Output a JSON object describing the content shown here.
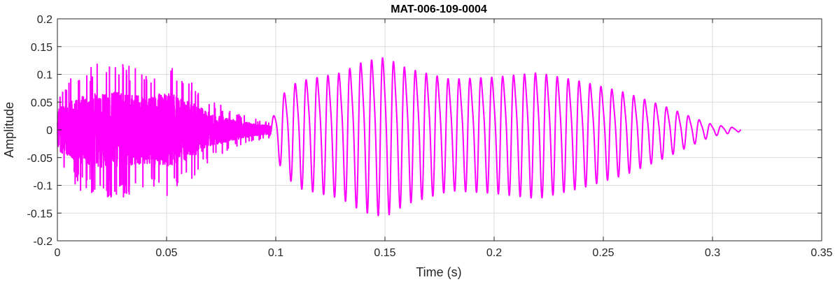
{
  "chart_data": {
    "type": "line",
    "title": "MAT-006-109-0004",
    "xlabel": "Time (s)",
    "ylabel": "Amplitude",
    "xlim": [
      0,
      0.35
    ],
    "ylim": [
      -0.2,
      0.2
    ],
    "xticks": [
      0,
      0.05,
      0.1,
      0.15,
      0.2,
      0.25,
      0.3,
      0.35
    ],
    "yticks": [
      -0.2,
      -0.15,
      -0.1,
      -0.05,
      0,
      0.05,
      0.1,
      0.15,
      0.2
    ],
    "xtick_labels": [
      "0",
      "0.05",
      "0.1",
      "0.15",
      "0.2",
      "0.25",
      "0.3",
      "0.35"
    ],
    "ytick_labels": [
      "-0.2",
      "-0.15",
      "-0.1",
      "-0.05",
      "0",
      "0.05",
      "0.1",
      "0.15",
      "0.2"
    ],
    "grid": true,
    "series": [
      {
        "color": "#ff00ff",
        "x_range": [
          0,
          0.313
        ],
        "segments": [
          {
            "kind": "noise",
            "t_start": 0.0,
            "t_end": 0.098,
            "envelope_t": [
              0.0,
              0.01,
              0.02,
              0.03,
              0.04,
              0.05,
              0.06,
              0.07,
              0.08,
              0.09,
              0.098
            ],
            "envelope_a": [
              0.05,
              0.08,
              0.09,
              0.09,
              0.08,
              0.09,
              0.07,
              0.04,
              0.025,
              0.015,
              0.01
            ]
          },
          {
            "kind": "periodic",
            "t_start": 0.098,
            "t_end": 0.313,
            "frequency_hz": 200,
            "envelope_t": [
              0.098,
              0.103,
              0.11,
              0.12,
              0.13,
              0.14,
              0.15,
              0.16,
              0.18,
              0.2,
              0.22,
              0.24,
              0.26,
              0.28,
              0.29,
              0.3,
              0.313
            ],
            "envelope_a": [
              0.02,
              0.08,
              0.11,
              0.12,
              0.13,
              0.155,
              0.165,
              0.14,
              0.115,
              0.12,
              0.13,
              0.11,
              0.085,
              0.05,
              0.03,
              0.012,
              0.003
            ]
          }
        ]
      }
    ]
  }
}
